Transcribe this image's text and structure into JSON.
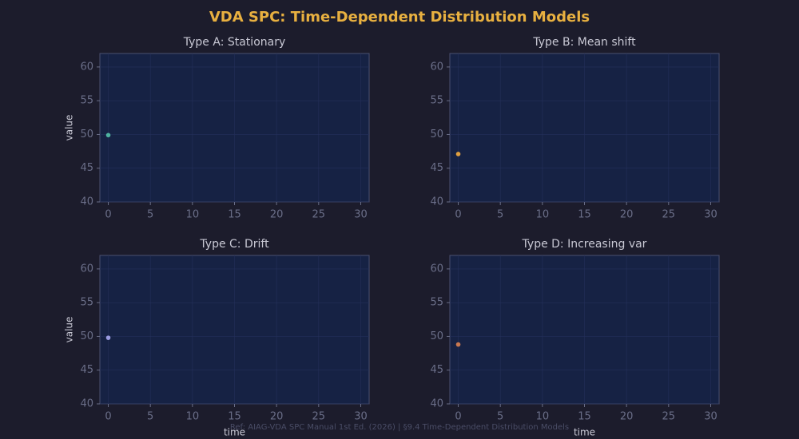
{
  "title": "VDA SPC: Time-Dependent Distribution Models",
  "note": "Ref: AIAG-VDA SPC Manual 1st Ed. (2026) | §9.4 Time-Dependent Distribution Models",
  "chart_data": [
    {
      "type": "scatter",
      "title": "Type A: Stationary",
      "ylabel": "value",
      "x": [
        0
      ],
      "values": [
        49.9
      ],
      "color": "#4fb3a0",
      "xlim": [
        -1,
        31
      ],
      "xticks": [
        0,
        5,
        10,
        15,
        20,
        25,
        30
      ],
      "ylim": [
        40,
        62
      ],
      "yticks": [
        40,
        45,
        50,
        55,
        60
      ],
      "grid": true
    },
    {
      "type": "scatter",
      "title": "Type B: Mean shift",
      "x": [
        0
      ],
      "values": [
        47.1
      ],
      "color": "#e0a040",
      "xlim": [
        -1,
        31
      ],
      "xticks": [
        0,
        5,
        10,
        15,
        20,
        25,
        30
      ],
      "ylim": [
        40,
        62
      ],
      "yticks": [
        40,
        45,
        50,
        55,
        60
      ],
      "grid": true
    },
    {
      "type": "scatter",
      "title": "Type C: Drift",
      "xlabel": "time",
      "ylabel": "value",
      "x": [
        0
      ],
      "values": [
        49.8
      ],
      "color": "#9b9be0",
      "xlim": [
        -1,
        31
      ],
      "xticks": [
        0,
        5,
        10,
        15,
        20,
        25,
        30
      ],
      "ylim": [
        40,
        62
      ],
      "yticks": [
        40,
        45,
        50,
        55,
        60
      ],
      "grid": true
    },
    {
      "type": "scatter",
      "title": "Type D: Increasing var",
      "xlabel": "time",
      "x": [
        0
      ],
      "values": [
        48.8
      ],
      "color": "#c87850",
      "xlim": [
        -1,
        31
      ],
      "xticks": [
        0,
        5,
        10,
        15,
        20,
        25,
        30
      ],
      "ylim": [
        40,
        62
      ],
      "yticks": [
        40,
        45,
        50,
        55,
        60
      ],
      "grid": true
    }
  ]
}
